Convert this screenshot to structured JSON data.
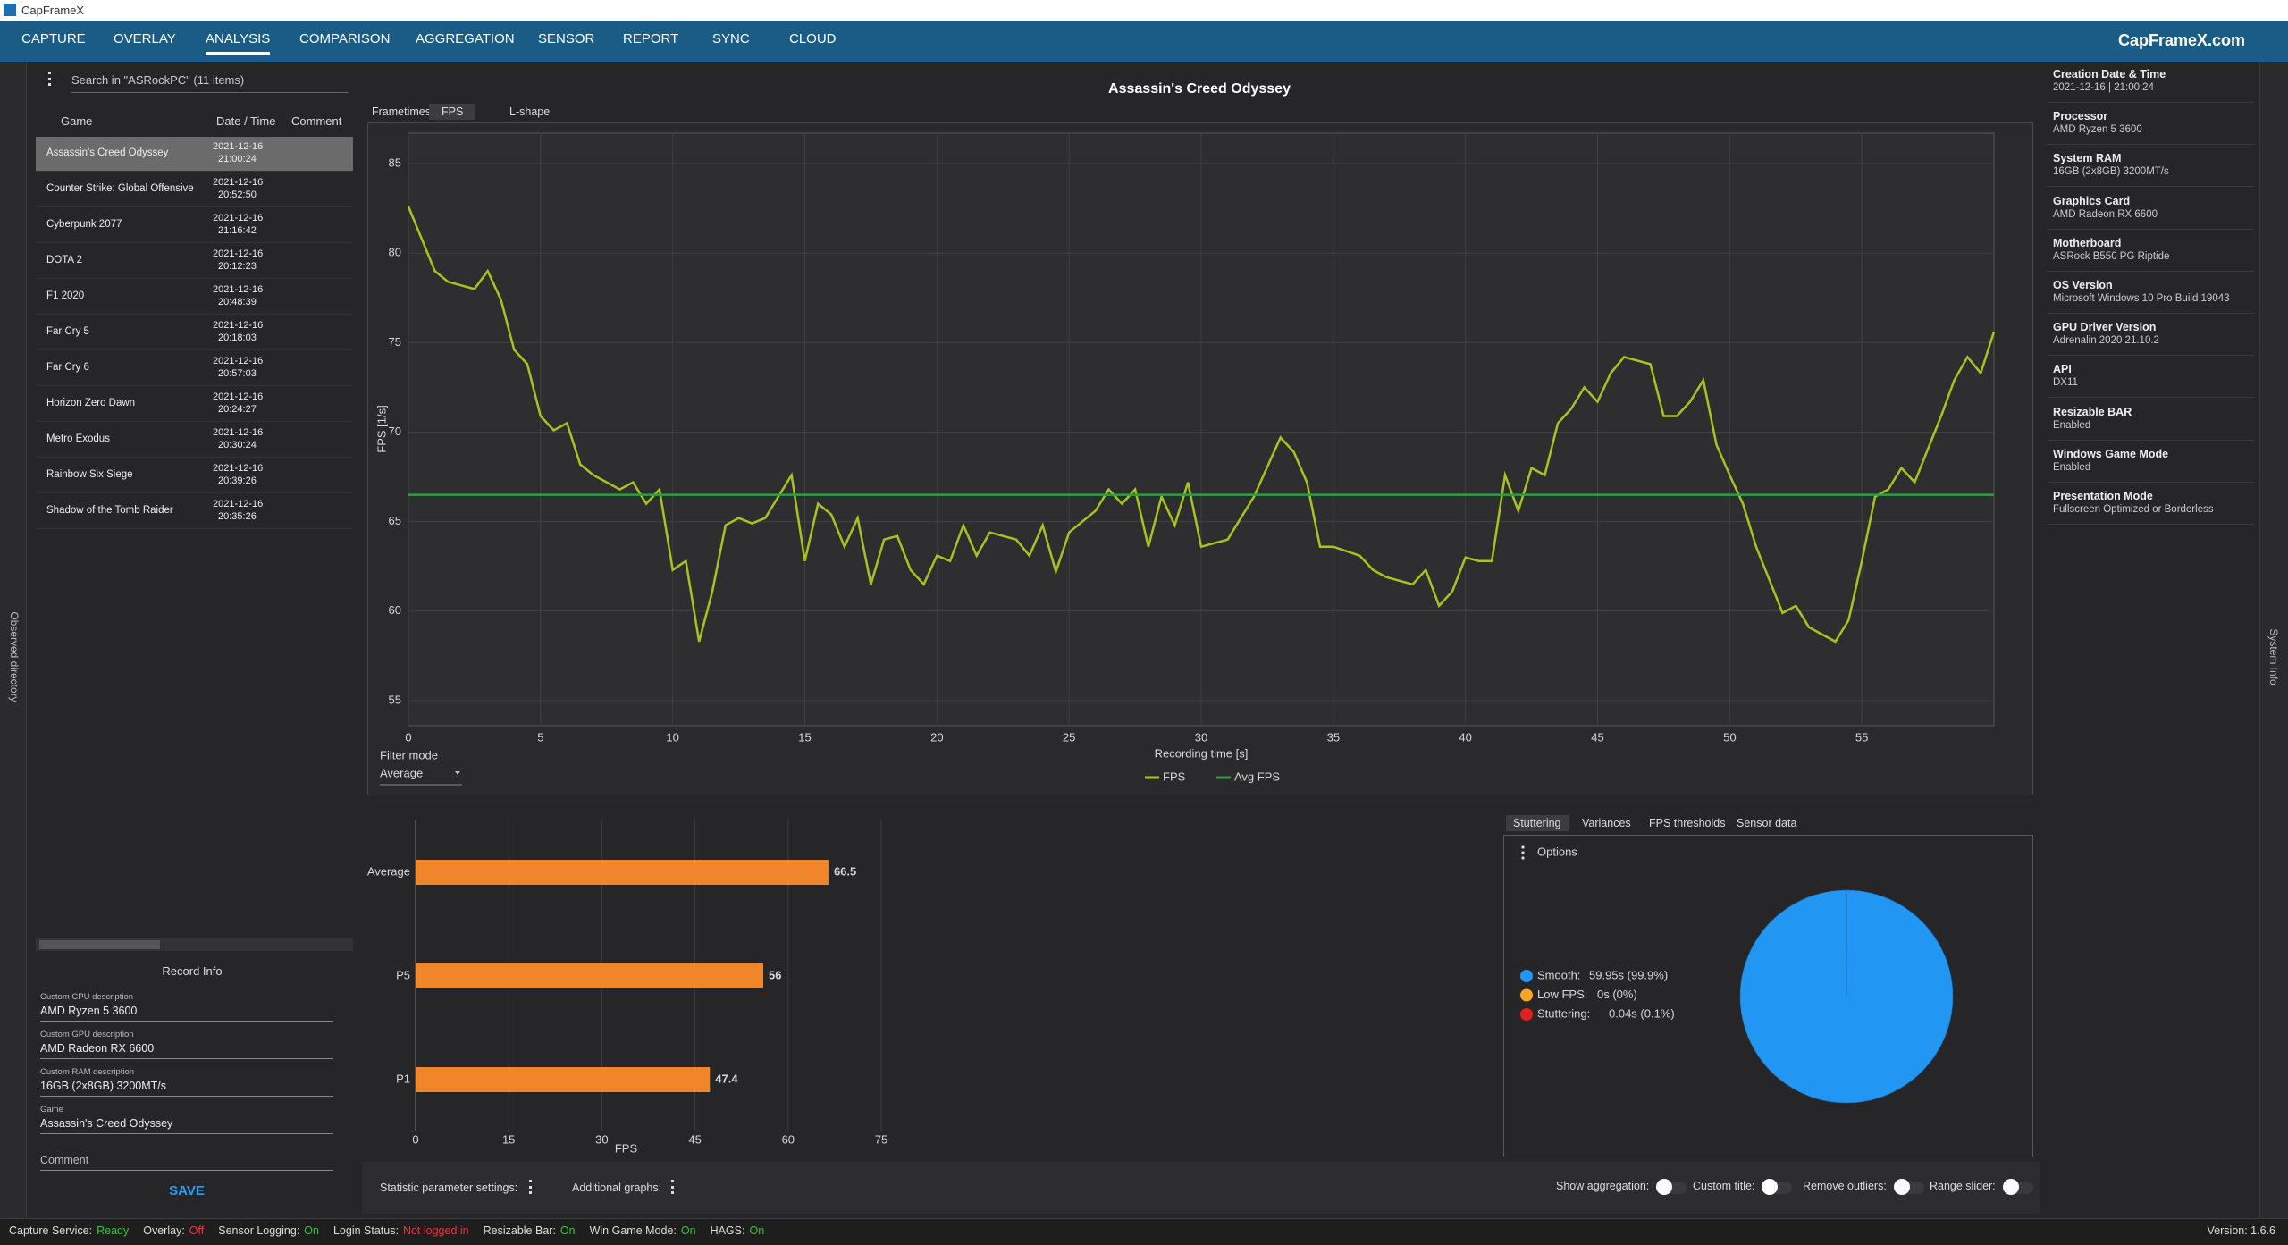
{
  "window": {
    "title": "CapFrameX"
  },
  "menu": {
    "items": [
      "CAPTURE",
      "OVERLAY",
      "ANALYSIS",
      "COMPARISON",
      "AGGREGATION",
      "SENSOR",
      "REPORT",
      "SYNC",
      "CLOUD"
    ],
    "selected": 2,
    "site": "CapFrameX.com"
  },
  "sidebar": {
    "left": "Observed directory",
    "right": "System Info"
  },
  "records": {
    "search": "Search in \"ASRockPC\" (11 items)",
    "columns": [
      "Game",
      "Date / Time",
      "Comment"
    ],
    "selected": 0,
    "rows": [
      {
        "game": "Assassin's Creed Odyssey",
        "date": "2021-12-16",
        "time": "21:00:24"
      },
      {
        "game": "Counter Strike: Global Offensive",
        "date": "2021-12-16",
        "time": "20:52:50"
      },
      {
        "game": "Cyberpunk 2077",
        "date": "2021-12-16",
        "time": "21:16:42"
      },
      {
        "game": "DOTA 2",
        "date": "2021-12-16",
        "time": "20:12:23"
      },
      {
        "game": "F1 2020",
        "date": "2021-12-16",
        "time": "20:48:39"
      },
      {
        "game": "Far Cry 5",
        "date": "2021-12-16",
        "time": "20:18:03"
      },
      {
        "game": "Far Cry 6",
        "date": "2021-12-16",
        "time": "20:57:03"
      },
      {
        "game": "Horizon Zero Dawn",
        "date": "2021-12-16",
        "time": "20:24:27"
      },
      {
        "game": "Metro Exodus",
        "date": "2021-12-16",
        "time": "20:30:24"
      },
      {
        "game": "Rainbow Six Siege",
        "date": "2021-12-16",
        "time": "20:39:26"
      },
      {
        "game": "Shadow of the Tomb Raider",
        "date": "2021-12-16",
        "time": "20:35:26"
      }
    ]
  },
  "record_info": {
    "title": "Record Info",
    "fields": [
      {
        "label": "Custom CPU description",
        "value": "AMD Ryzen 5 3600"
      },
      {
        "label": "Custom GPU description",
        "value": "AMD Radeon RX 6600"
      },
      {
        "label": "Custom RAM description",
        "value": "16GB (2x8GB) 3200MT/s"
      },
      {
        "label": "Game",
        "value": "Assassin's Creed Odyssey"
      }
    ],
    "comment": "Comment",
    "save": "SAVE"
  },
  "chart_tabs": {
    "tabs": [
      "Frametimes",
      "FPS",
      "L-shape"
    ],
    "selected": 1
  },
  "filter": {
    "label": "Filter mode",
    "value": "Average"
  },
  "chart_data": [
    {
      "type": "line",
      "title": "Assassin's Creed Odyssey",
      "xlabel": "Recording time [s]",
      "ylabel": "FPS [1/s]",
      "xlim": [
        0,
        60
      ],
      "ylim": [
        53.6,
        86.7
      ],
      "xticks": [
        0,
        5,
        10,
        15,
        20,
        25,
        30,
        35,
        40,
        45,
        50,
        55
      ],
      "yticks": [
        55,
        60,
        65,
        70,
        75,
        80,
        85
      ],
      "grid": true,
      "legend": "bottom",
      "series": [
        {
          "name": "FPS",
          "color": "#a7c41e",
          "x": [
            0,
            1,
            1.5,
            2.5,
            3,
            3.5,
            4,
            4.5,
            5,
            5.5,
            6,
            6.5,
            7,
            8,
            8.5,
            9,
            9.5,
            10,
            10.5,
            11,
            11.5,
            12,
            12.5,
            13,
            13.5,
            14,
            14.5,
            15,
            15.5,
            16,
            16.5,
            17,
            17.5,
            18,
            18.5,
            19,
            19.5,
            20,
            20.5,
            21,
            21.5,
            22,
            23,
            23.5,
            24,
            24.5,
            25,
            26,
            26.5,
            27,
            27.5,
            28,
            28.5,
            29,
            29.5,
            30,
            31,
            32,
            33,
            33.5,
            34,
            34.5,
            35,
            36,
            36.5,
            37,
            38,
            38.5,
            39,
            39.5,
            40,
            40.5,
            41,
            41.5,
            42,
            42.5,
            43,
            43.5,
            44,
            44.5,
            45,
            45.5,
            46,
            47,
            47.5,
            48,
            48.5,
            49,
            49.5,
            50,
            50.5,
            51,
            52,
            52.5,
            53,
            54,
            54.5,
            55,
            55.5,
            56,
            56.5,
            57,
            58,
            58.5,
            59,
            59.5,
            60
          ],
          "values": [
            82.6,
            79,
            78.4,
            78,
            79,
            77.4,
            74.6,
            73.8,
            70.9,
            70.1,
            70.5,
            68.2,
            67.6,
            66.8,
            67.2,
            66,
            66.8,
            62.3,
            62.8,
            58.3,
            61.1,
            64.8,
            65.2,
            64.9,
            65.2,
            66.4,
            67.6,
            62.8,
            66,
            65.4,
            63.6,
            65.2,
            61.5,
            64,
            64.2,
            62.3,
            61.5,
            63.1,
            62.8,
            64.8,
            63.1,
            64.4,
            64,
            63.1,
            64.8,
            62.2,
            64.4,
            65.6,
            66.8,
            66,
            66.8,
            63.6,
            66.4,
            64.8,
            67.2,
            63.6,
            64,
            66.4,
            69.7,
            68.9,
            67.2,
            63.6,
            63.6,
            63.1,
            62.3,
            61.9,
            61.5,
            62.3,
            60.3,
            61.1,
            63,
            62.8,
            62.8,
            67.6,
            65.6,
            68,
            67.6,
            70.5,
            71.3,
            72.5,
            71.7,
            73.3,
            74.2,
            73.8,
            70.9,
            70.9,
            71.7,
            72.9,
            69.3,
            67.6,
            66,
            63.6,
            59.9,
            60.3,
            59.1,
            58.3,
            59.5,
            62.8,
            66.4,
            66.8,
            68,
            67.2,
            70.9,
            72.9,
            74.2,
            73.3,
            75.6
          ]
        },
        {
          "name": "Avg FPS",
          "color": "#2f9e3b",
          "x": [
            0,
            60
          ],
          "values": [
            66.5,
            66.5
          ]
        }
      ]
    },
    {
      "type": "bar",
      "orientation": "horizontal",
      "categories": [
        "Average",
        "P5",
        "P1"
      ],
      "values": [
        66.5,
        56,
        47.4
      ],
      "color": "#f0852a",
      "xlim": [
        0,
        75
      ],
      "xticks": [
        0,
        15,
        30,
        45,
        60,
        75
      ],
      "xlabel": "FPS",
      "grid": true
    },
    {
      "type": "pie",
      "categories": [
        "Smooth:",
        "Low FPS:",
        "Stuttering:"
      ],
      "values": [
        99.9,
        0,
        0.1
      ],
      "value_labels": [
        "59.95s (99.9%)",
        "0s (0%)",
        "0.04s (0.1%)"
      ],
      "colors": [
        "#2196f3",
        "#f5a623",
        "#e3201b"
      ]
    }
  ],
  "stutter_tabs": {
    "tabs": [
      "Stuttering",
      "Variances",
      "FPS thresholds",
      "Sensor data"
    ],
    "selected": 0,
    "options": "Options"
  },
  "bottom": {
    "statistic": "Statistic parameter settings:",
    "additional": "Additional graphs:",
    "toggles": [
      "Show aggregation:",
      "Custom title:",
      "Remove outliers:",
      "Range slider:"
    ]
  },
  "system_info": [
    {
      "label": "Creation Date & Time",
      "value": "2021-12-16  |  21:00:24"
    },
    {
      "label": "Processor",
      "value": "AMD Ryzen 5 3600"
    },
    {
      "label": "System RAM",
      "value": "16GB (2x8GB) 3200MT/s"
    },
    {
      "label": "Graphics Card",
      "value": "AMD Radeon RX 6600"
    },
    {
      "label": "Motherboard",
      "value": "ASRock B550 PG Riptide"
    },
    {
      "label": "OS Version",
      "value": "Microsoft Windows 10 Pro Build 19043"
    },
    {
      "label": "GPU Driver Version",
      "value": "Adrenalin 2020 21.10.2"
    },
    {
      "label": "API",
      "value": "DX11"
    },
    {
      "label": "Resizable BAR",
      "value": "Enabled"
    },
    {
      "label": "Windows Game Mode",
      "value": "Enabled"
    },
    {
      "label": "Presentation Mode",
      "value": "Fullscreen Optimized or Borderless"
    }
  ],
  "status": {
    "items": [
      {
        "label": "Capture Service:",
        "value": "Ready",
        "color": "#3cc13b"
      },
      {
        "label": "Overlay:",
        "value": "Off",
        "color": "#e53935"
      },
      {
        "label": "Sensor Logging:",
        "value": "On",
        "color": "#3cc13b"
      },
      {
        "label": "Login Status:",
        "value": "Not logged in",
        "color": "#e53935"
      },
      {
        "label": "Resizable Bar:",
        "value": "On",
        "color": "#3cc13b"
      },
      {
        "label": "Win Game Mode:",
        "value": "On",
        "color": "#3cc13b"
      },
      {
        "label": "HAGS:",
        "value": "On",
        "color": "#3cc13b"
      }
    ],
    "version": "Version: 1.6.6"
  }
}
